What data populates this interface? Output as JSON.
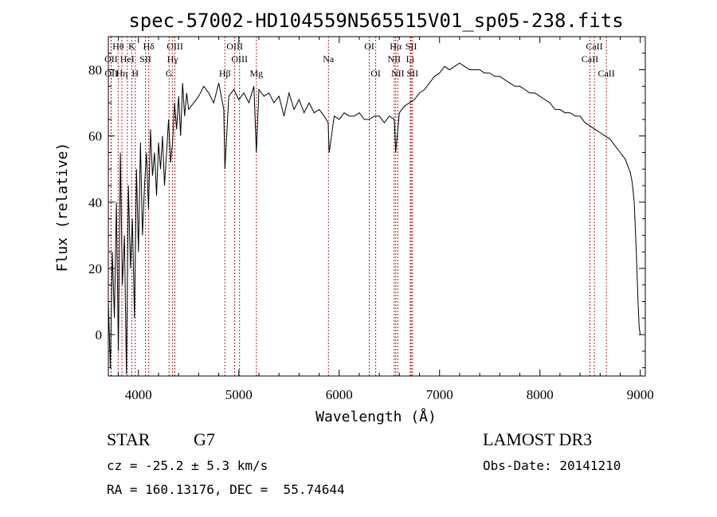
{
  "chart_data": {
    "type": "line",
    "title": "spec-57002-HD104559N565515V01_sp05-238.fits",
    "xlabel": "Wavelength (Å)",
    "ylabel": "Flux (relative)",
    "xlim": [
      3700,
      9050
    ],
    "ylim": [
      -12.5,
      90
    ],
    "x_ticks": [
      4000,
      5000,
      6000,
      7000,
      8000,
      9000
    ],
    "y_ticks": [
      0,
      20,
      40,
      60,
      80
    ],
    "grid": false,
    "series": [
      {
        "x": [
          3700,
          3720,
          3740,
          3760,
          3780,
          3800,
          3820,
          3840,
          3860,
          3880,
          3900,
          3920,
          3940,
          3960,
          3980,
          4000,
          4020,
          4040,
          4060,
          4080,
          4100,
          4120,
          4140,
          4160,
          4180,
          4200,
          4220,
          4240,
          4260,
          4280,
          4300,
          4320,
          4340,
          4360,
          4380,
          4400,
          4420,
          4440,
          4460,
          4480,
          4500,
          4550,
          4600,
          4650,
          4700,
          4750,
          4800,
          4850,
          4861,
          4900,
          4950,
          5000,
          5050,
          5100,
          5150,
          5175,
          5200,
          5250,
          5300,
          5350,
          5400,
          5450,
          5500,
          5550,
          5600,
          5650,
          5700,
          5750,
          5800,
          5850,
          5890,
          5900,
          5950,
          6000,
          6050,
          6100,
          6150,
          6200,
          6250,
          6300,
          6350,
          6400,
          6450,
          6500,
          6550,
          6563,
          6600,
          6650,
          6700,
          6750,
          6800,
          6850,
          6900,
          6950,
          7000,
          7050,
          7100,
          7150,
          7200,
          7250,
          7300,
          7350,
          7400,
          7450,
          7500,
          7550,
          7600,
          7650,
          7700,
          7750,
          7800,
          7850,
          7900,
          7950,
          8000,
          8050,
          8100,
          8150,
          8200,
          8250,
          8300,
          8350,
          8400,
          8450,
          8500,
          8550,
          8600,
          8650,
          8700,
          8750,
          8800,
          8850,
          8900,
          8920,
          8940,
          8960,
          8980,
          8990,
          9000
        ],
        "y": [
          10,
          -10,
          25,
          5,
          40,
          -5,
          55,
          15,
          30,
          -12,
          45,
          20,
          35,
          5,
          50,
          25,
          58,
          30,
          45,
          55,
          38,
          62,
          48,
          55,
          42,
          58,
          50,
          60,
          45,
          55,
          65,
          52,
          58,
          70,
          62,
          72,
          60,
          76,
          66,
          73,
          68,
          70,
          72,
          75,
          73,
          70,
          76,
          68,
          50,
          72,
          74,
          71,
          73,
          70,
          75,
          55,
          74,
          72,
          73,
          70,
          72,
          66,
          73,
          68,
          71,
          67,
          70,
          67,
          68,
          66,
          64,
          55,
          66,
          65,
          67,
          66,
          66,
          67,
          65,
          65,
          66,
          66,
          64,
          66,
          65,
          55,
          67,
          69,
          70,
          71,
          73,
          74,
          76,
          78,
          79,
          81,
          80,
          81,
          82,
          81,
          80,
          80,
          80,
          79,
          79,
          78,
          78,
          77,
          76,
          75,
          75,
          74,
          73,
          73,
          72,
          71,
          70,
          68,
          68,
          67,
          67,
          66,
          66,
          64,
          63,
          62,
          61,
          60,
          59,
          57,
          55,
          53,
          49,
          46,
          40,
          25,
          8,
          2,
          0
        ],
        "color": "#000000"
      }
    ],
    "line_markers": [
      {
        "label": "Hθ",
        "wavelength": 3798,
        "row": 1
      },
      {
        "label": "K",
        "wavelength": 3934,
        "row": 1
      },
      {
        "label": "Hδ",
        "wavelength": 4102,
        "row": 1
      },
      {
        "label": "OIII",
        "wavelength": 4363,
        "row": 1
      },
      {
        "label": "OIII",
        "wavelength": 4959,
        "row": 1
      },
      {
        "label": "OI",
        "wavelength": 6300,
        "row": 1
      },
      {
        "label": "Hα",
        "wavelength": 6563,
        "row": 1
      },
      {
        "label": "SII",
        "wavelength": 6717,
        "row": 1
      },
      {
        "label": "CaII",
        "wavelength": 8542,
        "row": 1
      },
      {
        "label": "OII",
        "wavelength": 3727,
        "row": 2
      },
      {
        "label": "HeI",
        "wavelength": 3889,
        "row": 2
      },
      {
        "label": "SII",
        "wavelength": 4070,
        "row": 2
      },
      {
        "label": "Hγ",
        "wavelength": 4340,
        "row": 2
      },
      {
        "label": "OIII",
        "wavelength": 5007,
        "row": 2
      },
      {
        "label": "Na",
        "wavelength": 5893,
        "row": 2
      },
      {
        "label": "NII",
        "wavelength": 6548,
        "row": 2
      },
      {
        "label": "Li",
        "wavelength": 6708,
        "row": 2
      },
      {
        "label": "CaII",
        "wavelength": 8498,
        "row": 2
      },
      {
        "label": "OII",
        "wavelength": 3729,
        "row": 3
      },
      {
        "label": "Hη",
        "wavelength": 3835,
        "row": 3
      },
      {
        "label": "H",
        "wavelength": 3968,
        "row": 3
      },
      {
        "label": "G",
        "wavelength": 4305,
        "row": 3
      },
      {
        "label": "Hβ",
        "wavelength": 4861,
        "row": 3
      },
      {
        "label": "Mg",
        "wavelength": 5175,
        "row": 3
      },
      {
        "label": "OI",
        "wavelength": 6364,
        "row": 3
      },
      {
        "label": "NII",
        "wavelength": 6584,
        "row": 3
      },
      {
        "label": "SII",
        "wavelength": 6731,
        "row": 3
      },
      {
        "label": "CaII",
        "wavelength": 8662,
        "row": 3
      }
    ]
  },
  "info": {
    "object_class": "STAR",
    "subclass": "G7",
    "survey": "LAMOST DR3",
    "redshift": "cz = -25.2 ± 5.3 km/s",
    "obs_date": "Obs-Date: 20141210",
    "coords": "RA = 160.13176, DEC =  55.74644"
  }
}
